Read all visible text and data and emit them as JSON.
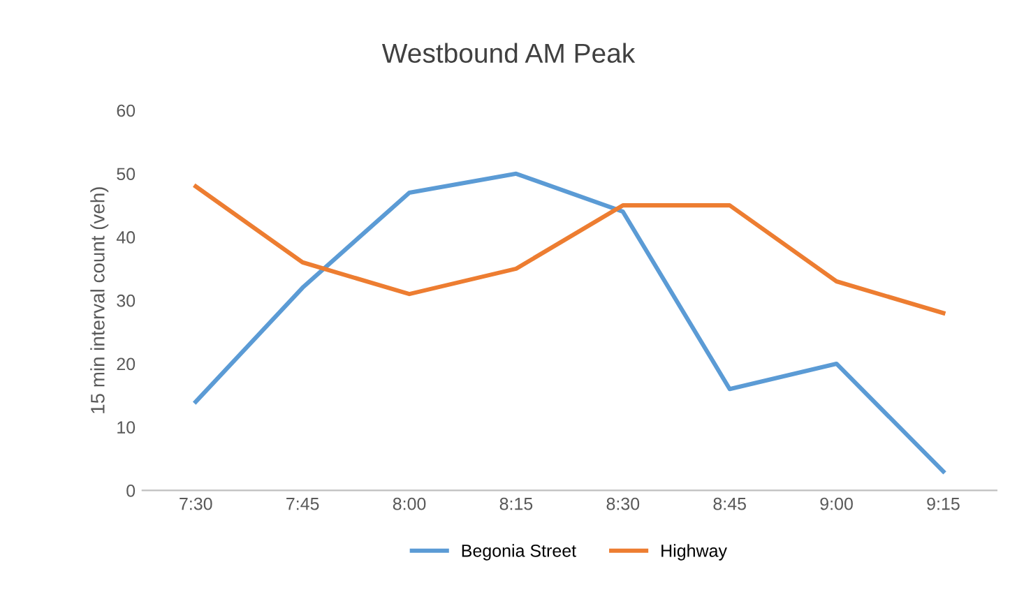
{
  "chart_data": {
    "type": "line",
    "title": "Westbound AM Peak",
    "ylabel": "15 min interval count (veh)",
    "categories": [
      "7:30",
      "7:45",
      "8:00",
      "8:15",
      "8:30",
      "8:45",
      "9:00",
      "9:15"
    ],
    "series": [
      {
        "name": "Begonia Street",
        "color": "#5b9bd5",
        "values": [
          14,
          32,
          47,
          50,
          44,
          16,
          20,
          3
        ]
      },
      {
        "name": "Highway",
        "color": "#ed7d31",
        "values": [
          48,
          36,
          31,
          35,
          45,
          45,
          33,
          28
        ]
      }
    ],
    "ylim": [
      0,
      60
    ],
    "yticks": [
      0,
      10,
      20,
      30,
      40,
      50,
      60
    ],
    "legend": "bottom",
    "marker": "none",
    "line_style": "solid"
  }
}
